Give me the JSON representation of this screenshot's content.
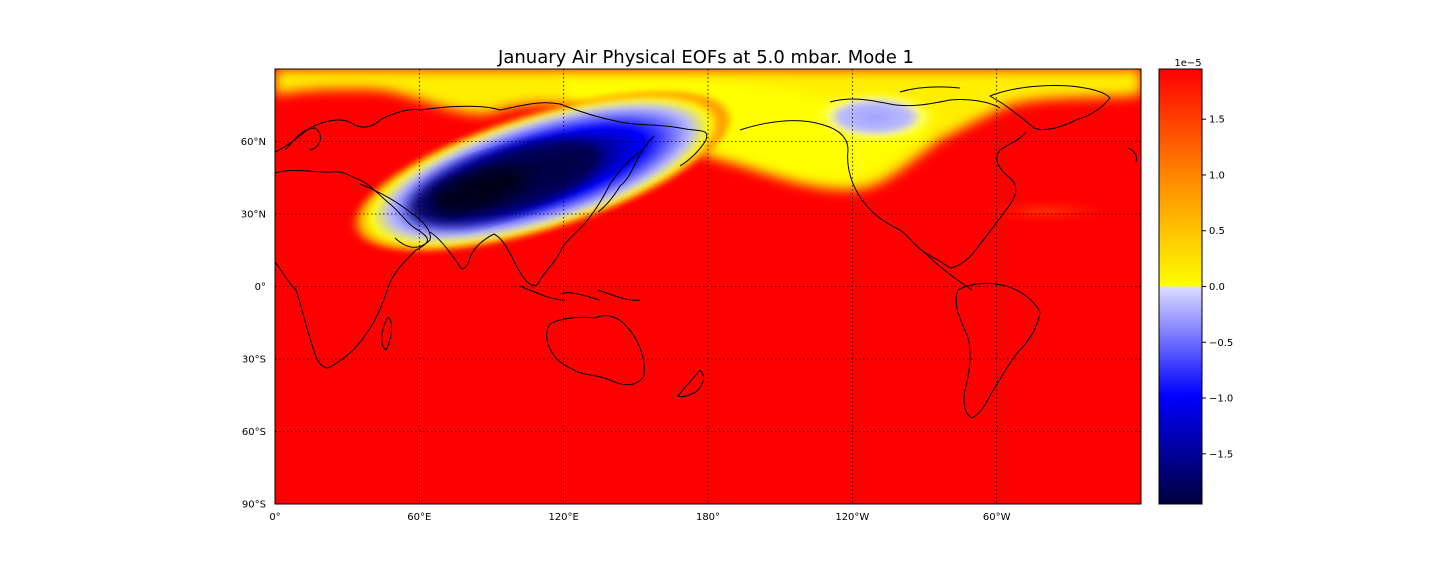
{
  "title": "January Air Physical EOFs at 5.0 mbar. Mode 1",
  "map": {
    "projection": "cylindrical",
    "lon_range": [
      0,
      360
    ],
    "lat_range": [
      -90,
      90
    ],
    "lon_ticks": [
      {
        "value": 0,
        "label": "0°"
      },
      {
        "value": 60,
        "label": "60°E"
      },
      {
        "value": 120,
        "label": "120°E"
      },
      {
        "value": 180,
        "label": "180°"
      },
      {
        "value": 240,
        "label": "120°W"
      },
      {
        "value": 300,
        "label": "60°W"
      }
    ],
    "lat_ticks": [
      {
        "value": 60,
        "label": "60°N"
      },
      {
        "value": 30,
        "label": "30°N"
      },
      {
        "value": 0,
        "label": "0°"
      },
      {
        "value": -30,
        "label": "30°S"
      },
      {
        "value": -60,
        "label": "60°S"
      },
      {
        "value": -90,
        "label": "90°S"
      }
    ],
    "grid": true,
    "background_color": "#ff0000"
  },
  "chart_data": {
    "type": "heatmap",
    "title": "January Air Physical EOFs at 5.0 mbar. Mode 1",
    "field_range": [
      -1.95e-05,
      1.95e-05
    ],
    "features": [
      {
        "name": "negative anomaly, Asia",
        "center_lon": 90,
        "center_lat": 40,
        "value": -1.9e-05
      },
      {
        "name": "weak negative anomaly, Arctic Canada",
        "center_lon": 255,
        "center_lat": 70,
        "value": -3e-06
      },
      {
        "name": "near-zero band, northern high latitudes",
        "center_lon": 180,
        "center_lat": 75,
        "value": 2e-06
      },
      {
        "name": "slight dip, North Atlantic",
        "center_lon": 325,
        "center_lat": 31,
        "value": 1.6e-05
      }
    ]
  },
  "colorbar": {
    "exponent_label": "1e−5",
    "ticks": [
      {
        "value": 1.5,
        "label": "1.5"
      },
      {
        "value": 1.0,
        "label": "1.0"
      },
      {
        "value": 0.5,
        "label": "0.5"
      },
      {
        "value": 0.0,
        "label": "0.0"
      },
      {
        "value": -0.5,
        "label": "−0.5"
      },
      {
        "value": -1.0,
        "label": "−1.0"
      },
      {
        "value": -1.5,
        "label": "−1.5"
      }
    ],
    "vmin": -1.95,
    "vmax": 1.95,
    "colors": {
      "max": "#ff0000",
      "mid_pos": "#ff8c00",
      "zero_pos": "#ffff00",
      "zero_neg": "#dcdcff",
      "mid_neg": "#0000ff",
      "min": "#00003c"
    }
  }
}
